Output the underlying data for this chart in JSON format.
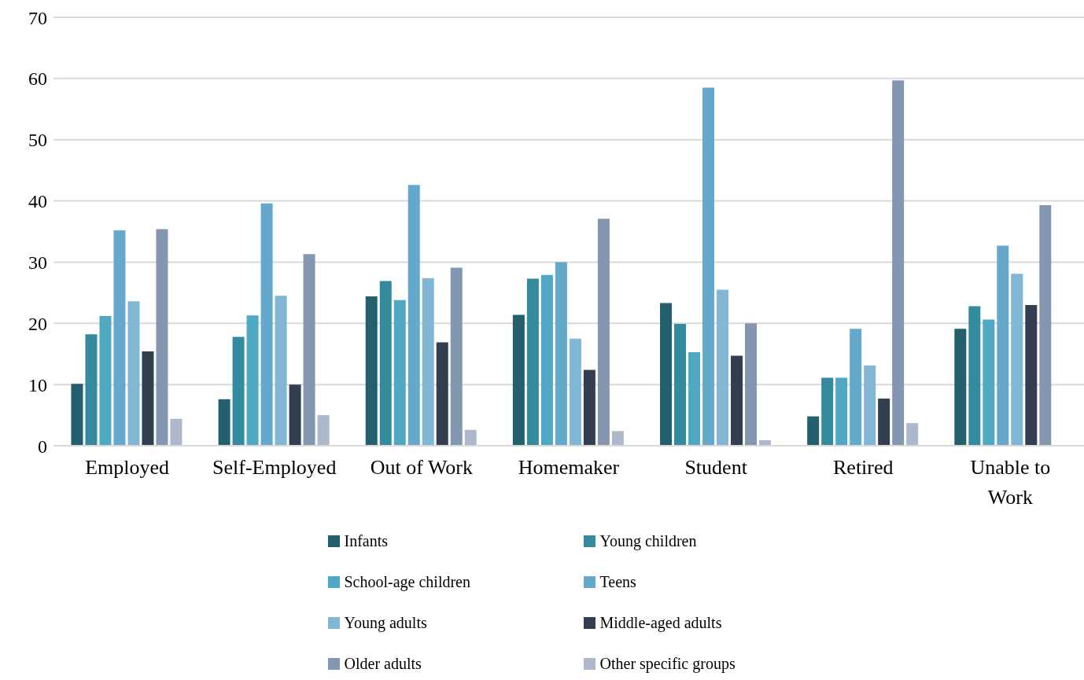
{
  "chart_data": {
    "type": "bar",
    "categories": [
      "Employed",
      "Self-Employed",
      "Out of Work",
      "Homemaker",
      "Student",
      "Retired",
      "Unable to Work"
    ],
    "series": [
      {
        "name": "Infants",
        "color": "#235f6d",
        "values": [
          10.1,
          7.6,
          24.4,
          21.4,
          23.3,
          4.8,
          19.1
        ]
      },
      {
        "name": "Young children",
        "color": "#348b9e",
        "values": [
          18.2,
          17.8,
          26.9,
          27.3,
          19.9,
          11.1,
          22.8
        ]
      },
      {
        "name": "School-age children",
        "color": "#50a9c2",
        "values": [
          21.2,
          21.3,
          23.8,
          27.9,
          15.3,
          11.1,
          20.6
        ]
      },
      {
        "name": "Teens",
        "color": "#64a8cb",
        "values": [
          35.2,
          39.6,
          42.6,
          30.0,
          58.5,
          19.1,
          32.7
        ]
      },
      {
        "name": "Young adults",
        "color": "#81b7d4",
        "values": [
          23.6,
          24.5,
          27.4,
          17.5,
          25.5,
          13.1,
          28.1
        ]
      },
      {
        "name": "Middle-aged adults",
        "color": "#333e50",
        "values": [
          15.4,
          10.0,
          16.9,
          12.4,
          14.7,
          7.7,
          23.0
        ]
      },
      {
        "name": "Older adults",
        "color": "#8497b0",
        "values": [
          35.4,
          31.3,
          29.1,
          37.1,
          20.0,
          59.7,
          39.3
        ]
      },
      {
        "name": "Other specific groups",
        "color": "#adb9ca",
        "values": [
          4.4,
          5.0,
          2.6,
          2.4,
          0.9,
          3.7,
          null
        ]
      }
    ],
    "ylim": [
      0,
      70
    ],
    "yticks": [
      0,
      10,
      20,
      30,
      40,
      50,
      60,
      70
    ],
    "grid": "y",
    "legend": "bottom"
  }
}
